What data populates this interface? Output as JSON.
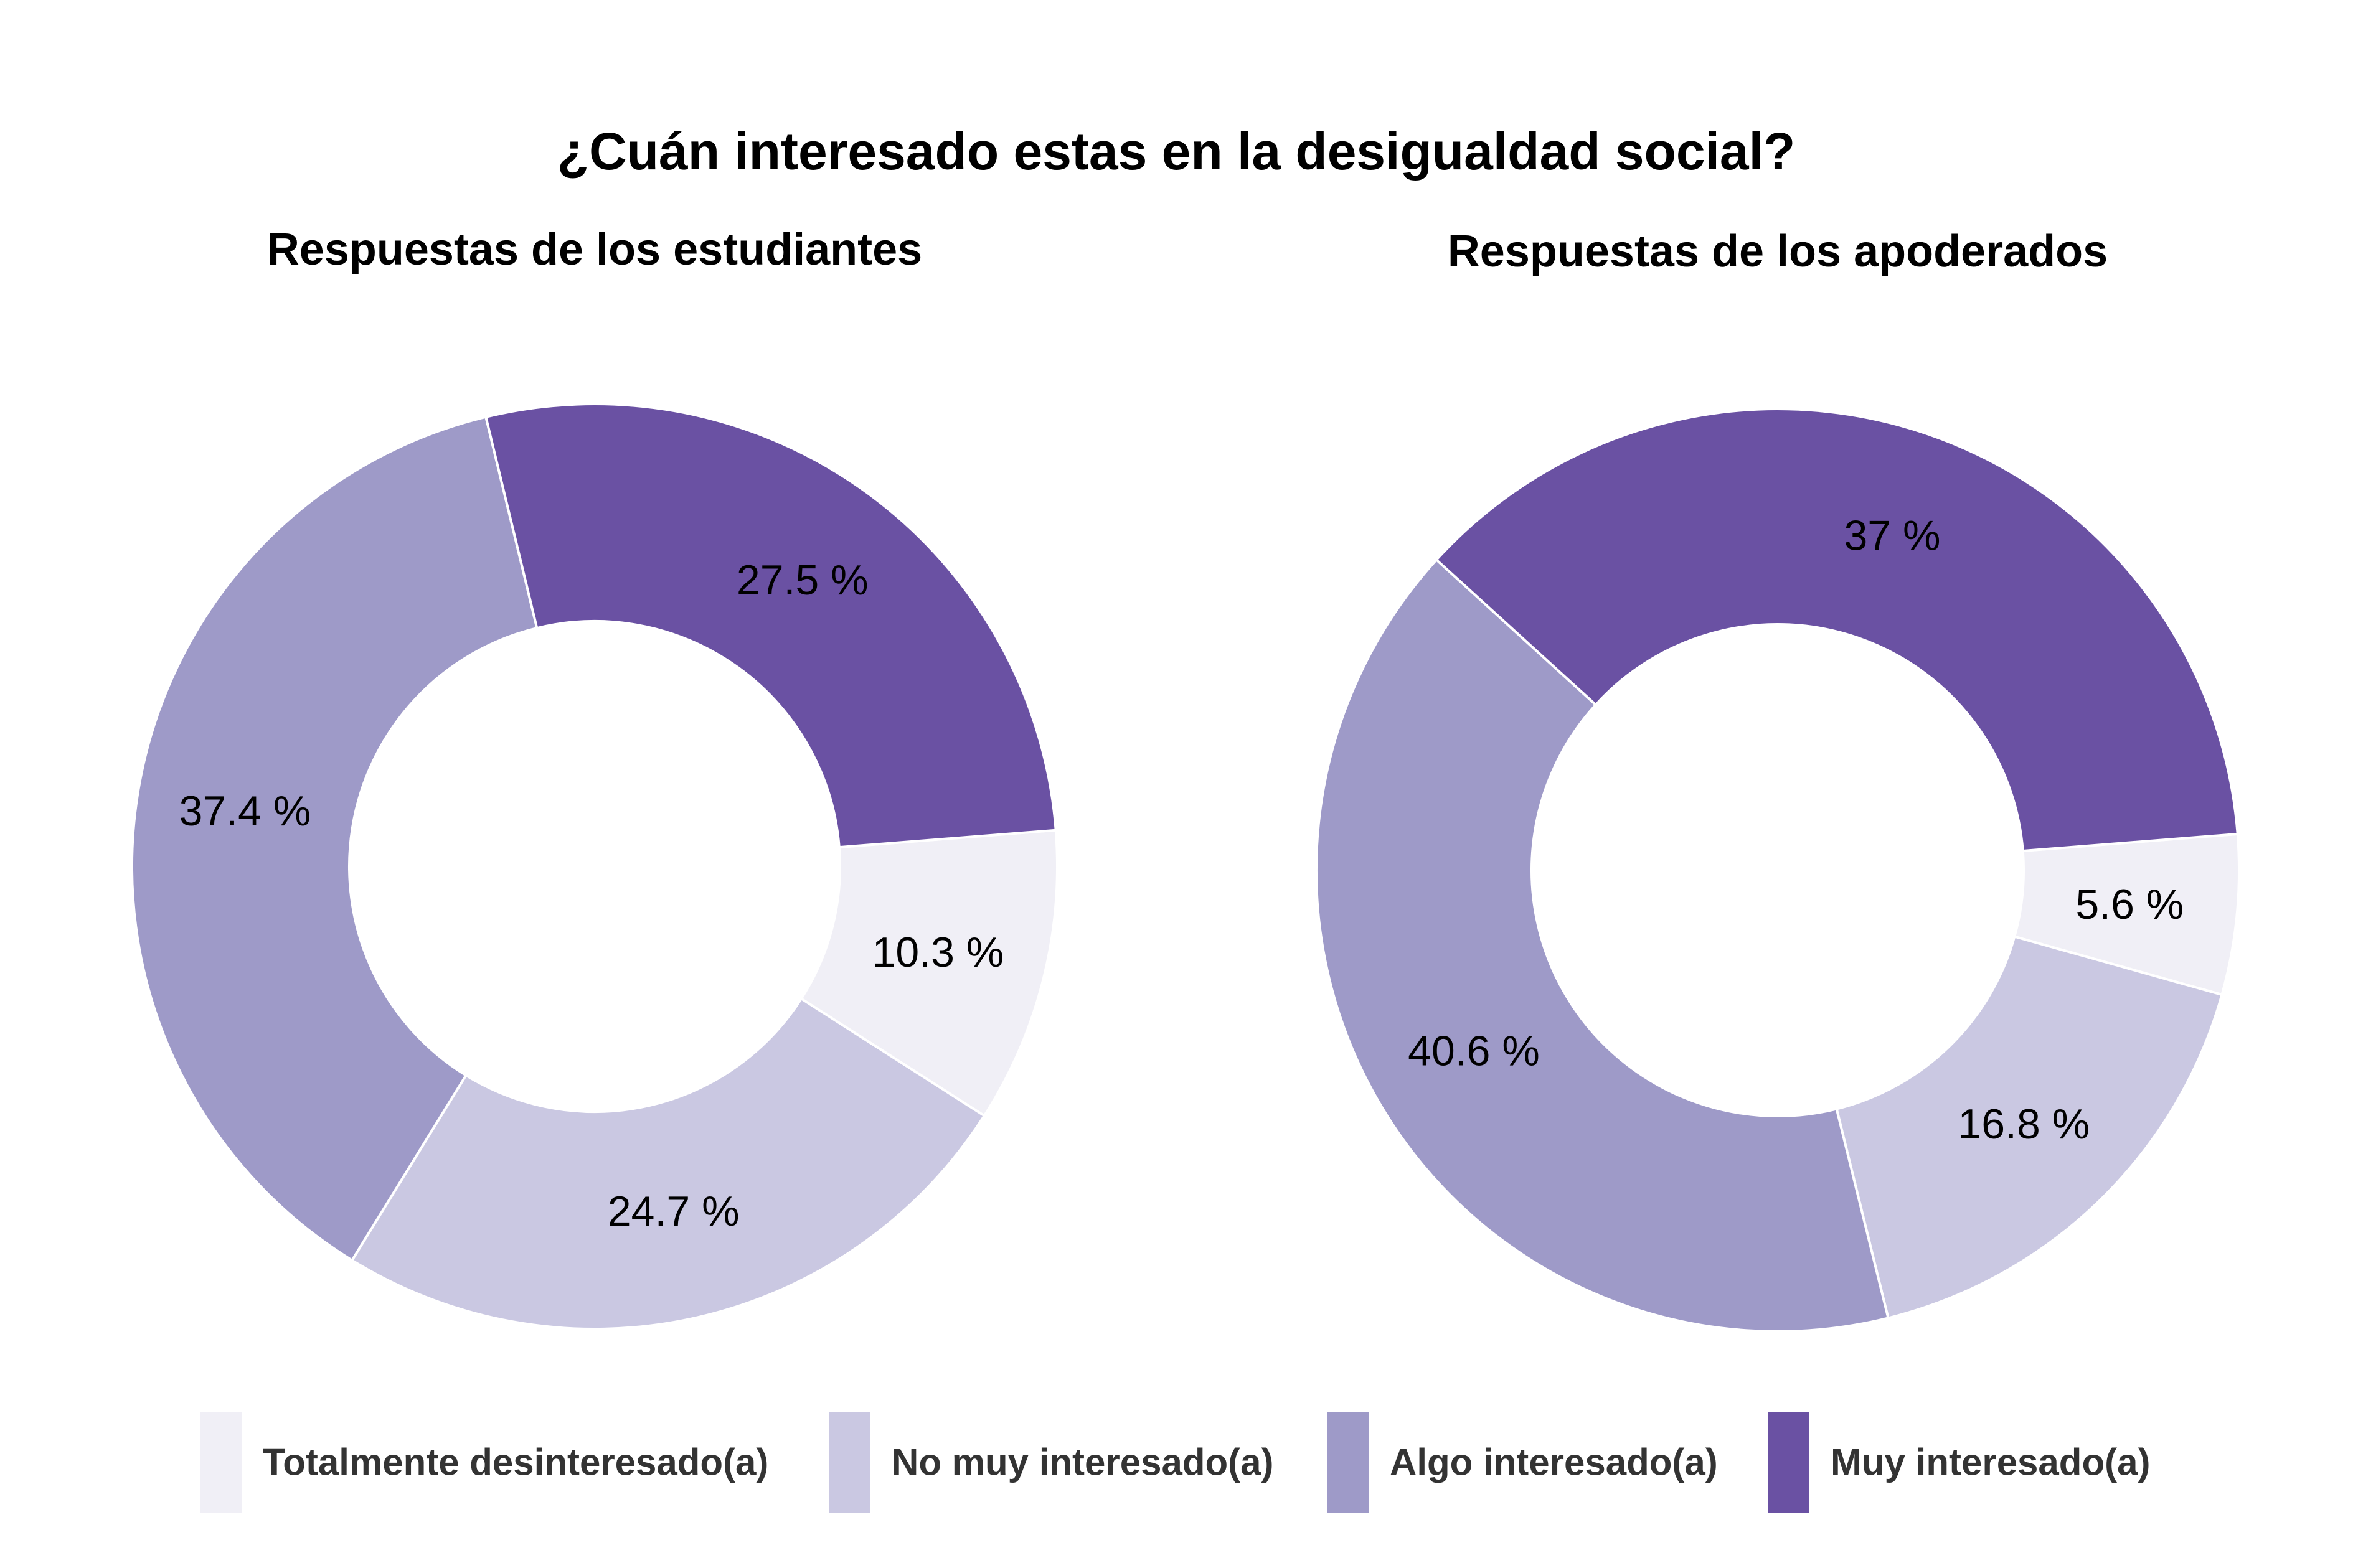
{
  "colors": {
    "Totalmente desinteresado(a)": "#f0eff6",
    "No muy interesado(a)": "#cac8e2",
    "Algo interesado(a)": "#9e9ac8",
    "Muy interesado(a)": "#6a51a3"
  },
  "chart_data": {
    "type": "pie",
    "subtype": "donut",
    "title": "¿Cuán interesado estas en la desigualdad social?",
    "legend_position": "bottom",
    "legend": [
      "Totalmente desinteresado(a)",
      "No muy interesado(a)",
      "Algo interesado(a)",
      "Muy interesado(a)"
    ],
    "charts": [
      {
        "subtitle": "Respuestas de los estudiantes",
        "slices": [
          {
            "category": "Totalmente desinteresado(a)",
            "value": 10.3,
            "label": "10.3 %"
          },
          {
            "category": "No muy interesado(a)",
            "value": 24.7,
            "label": "24.7 %"
          },
          {
            "category": "Algo interesado(a)",
            "value": 37.4,
            "label": "37.4 %"
          },
          {
            "category": "Muy interesado(a)",
            "value": 27.5,
            "label": "27.5 %"
          }
        ]
      },
      {
        "subtitle": "Respuestas de los apoderados",
        "slices": [
          {
            "category": "Totalmente desinteresado(a)",
            "value": 5.6,
            "label": "5.6 %"
          },
          {
            "category": "No muy interesado(a)",
            "value": 16.8,
            "label": "16.8 %"
          },
          {
            "category": "Algo interesado(a)",
            "value": 40.6,
            "label": "40.6 %"
          },
          {
            "category": "Muy interesado(a)",
            "value": 37,
            "label": "37 %"
          }
        ]
      }
    ]
  }
}
